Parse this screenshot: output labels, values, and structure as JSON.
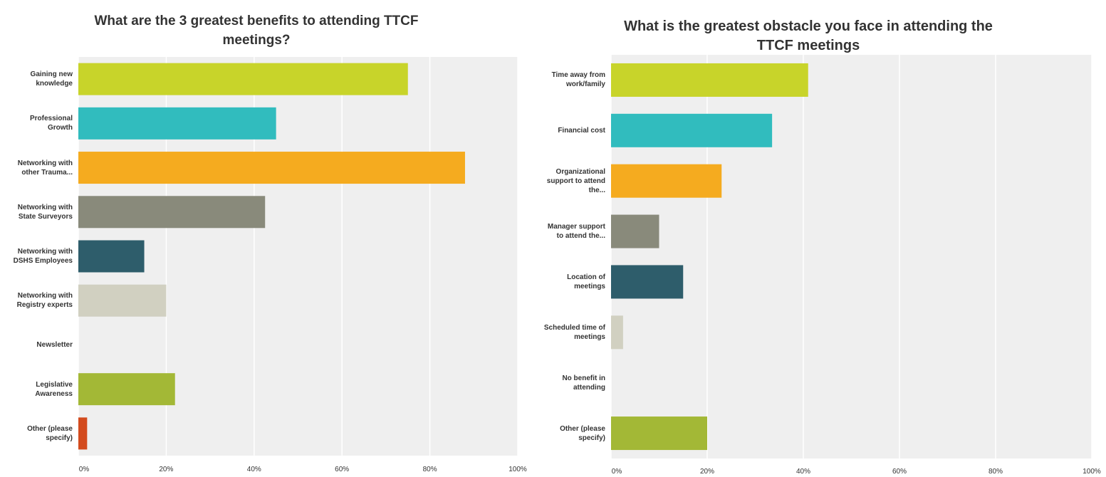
{
  "chart_data": [
    {
      "type": "bar",
      "orientation": "horizontal",
      "title": "What are the 3 greatest benefits to attending TTCF meetings?",
      "categories": [
        "Gaining new knowledge",
        "Professional Growth",
        "Networking with other Trauma...",
        "Networking with State Surveyors",
        "Networking with DSHS Employees",
        "Networking with Registry experts",
        "Newsletter",
        "Legislative Awareness",
        "Other (please specify)"
      ],
      "values": [
        75,
        45,
        88,
        42.5,
        15,
        20,
        0,
        22,
        2
      ],
      "colors": [
        "#c8d42a",
        "#31bcbe",
        "#f5ab1f",
        "#898a7b",
        "#2e5d6b",
        "#d1d0c1",
        "#7f7f7f",
        "#a3b836",
        "#d34b1e"
      ],
      "xlim": [
        0,
        100
      ],
      "xticks": [
        {
          "value": 0,
          "label": "0%"
        },
        {
          "value": 20,
          "label": "20%"
        },
        {
          "value": 40,
          "label": "40%"
        },
        {
          "value": 60,
          "label": "60%"
        },
        {
          "value": 80,
          "label": "80%"
        },
        {
          "value": 100,
          "label": "100%"
        }
      ],
      "grid": true
    },
    {
      "type": "bar",
      "orientation": "horizontal",
      "title": "What is the greatest obstacle you face in attending the TTCF meetings",
      "categories": [
        "Time away from work/family",
        "Financial cost",
        "Organizational support to attend the...",
        "Manager support to attend the...",
        "Location of meetings",
        "Scheduled time of meetings",
        "No benefit in attending",
        "Other (please specify)"
      ],
      "values": [
        41,
        33.5,
        23,
        10,
        15,
        2.5,
        0,
        20
      ],
      "colors": [
        "#c8d42a",
        "#31bcbe",
        "#f5ab1f",
        "#898a7b",
        "#2e5d6b",
        "#d1d0c1",
        "#7f7f7f",
        "#a3b836"
      ],
      "xlim": [
        0,
        100
      ],
      "xticks": [
        {
          "value": 0,
          "label": "0%"
        },
        {
          "value": 20,
          "label": "20%"
        },
        {
          "value": 40,
          "label": "40%"
        },
        {
          "value": 60,
          "label": "60%"
        },
        {
          "value": 80,
          "label": "80%"
        },
        {
          "value": 100,
          "label": "100%"
        }
      ],
      "grid": true
    }
  ]
}
